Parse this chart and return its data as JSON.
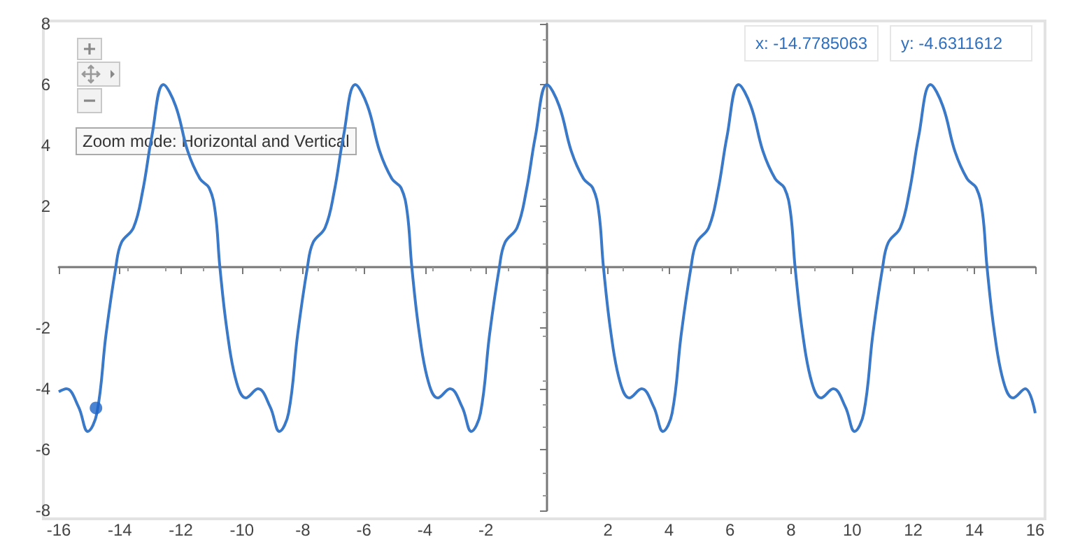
{
  "chart_data": {
    "type": "line",
    "xlim": [
      -16,
      16
    ],
    "ylim": [
      -8,
      8
    ],
    "xticks": [
      -16,
      -14,
      -12,
      -10,
      -8,
      -6,
      -4,
      -2,
      {
        "value": 0,
        "label": null
      },
      2,
      4,
      6,
      8,
      10,
      12,
      14,
      16
    ],
    "yticks": [
      -8,
      -6,
      -4,
      -2,
      {
        "value": 0,
        "label": null
      },
      2,
      4,
      6,
      8
    ],
    "marker": "none",
    "annotations": [
      "Zoom mode: Horizontal and Vertical",
      "x: -14.7785063",
      "y: -4.6311612"
    ],
    "series": [
      {
        "color": "#3a78c8",
        "x": [
          -16,
          -15.75,
          -15.35,
          -15.05,
          -14.75,
          -14.45,
          -14.13,
          -13.95,
          -13.55,
          -13.25,
          -12.95,
          -12.57,
          -12.17,
          -11.77,
          -11.37,
          -11.07,
          -10.87,
          -10.72,
          -10.47,
          -10.17,
          -9.87,
          -9.47,
          -9.07,
          -8.77,
          -8.47,
          -8.17,
          -7.85,
          -7.67,
          -7.27,
          -6.97,
          -6.67,
          -6.28,
          -5.88,
          -5.48,
          -5.08,
          -4.78,
          -4.58,
          -4.43,
          -4.18,
          -3.88,
          -3.58,
          -3.18,
          -2.78,
          -2.48,
          -2.18,
          -1.88,
          -1.56,
          -1.38,
          -0.98,
          -0.68,
          -0.38,
          0,
          0.4,
          0.8,
          1.2,
          1.5,
          1.7,
          1.85,
          2.1,
          2.4,
          2.7,
          3.1,
          3.5,
          3.8,
          4.1,
          4.4,
          4.72,
          4.9,
          5.3,
          5.6,
          5.9,
          6.28,
          6.68,
          7.08,
          7.48,
          7.78,
          7.98,
          8.13,
          8.38,
          8.68,
          8.98,
          9.38,
          9.78,
          10.08,
          10.38,
          10.68,
          11.0,
          11.18,
          11.58,
          11.88,
          12.18,
          12.57,
          12.97,
          13.37,
          13.77,
          14.07,
          14.27,
          14.42,
          14.67,
          14.97,
          15.27,
          15.67,
          16
        ],
        "values": [
          -4.1,
          -4.0,
          -4.6,
          -5.4,
          -4.8,
          -2.2,
          0,
          0.8,
          1.3,
          2.5,
          4.3,
          6,
          5.3,
          3.8,
          2.9,
          2.6,
          1.8,
          0,
          -2.2,
          -3.8,
          -4.3,
          -4.0,
          -4.6,
          -5.4,
          -4.8,
          -2.2,
          0,
          0.8,
          1.3,
          2.5,
          4.3,
          6,
          5.3,
          3.8,
          2.9,
          2.6,
          1.8,
          0,
          -2.2,
          -3.8,
          -4.3,
          -4.0,
          -4.6,
          -5.4,
          -4.8,
          -2.2,
          0,
          0.8,
          1.3,
          2.5,
          4.3,
          6,
          5.3,
          3.8,
          2.9,
          2.6,
          1.8,
          0,
          -2.2,
          -3.8,
          -4.3,
          -4.0,
          -4.6,
          -5.4,
          -4.8,
          -2.2,
          0,
          0.8,
          1.3,
          2.5,
          4.3,
          6,
          5.3,
          3.8,
          2.9,
          2.6,
          1.8,
          0,
          -2.2,
          -3.8,
          -4.3,
          -4.0,
          -4.6,
          -5.4,
          -4.8,
          -2.2,
          0,
          0.8,
          1.3,
          2.5,
          4.3,
          6,
          5.3,
          3.8,
          2.9,
          2.6,
          1.8,
          0,
          -2.2,
          -3.8,
          -4.3,
          -4.0,
          -4.8
        ]
      },
      {
        "type": "scatter",
        "color": "#1e64c8",
        "marker": "circle",
        "x": [
          -14.78
        ],
        "values": [
          -4.63
        ]
      }
    ]
  }
}
